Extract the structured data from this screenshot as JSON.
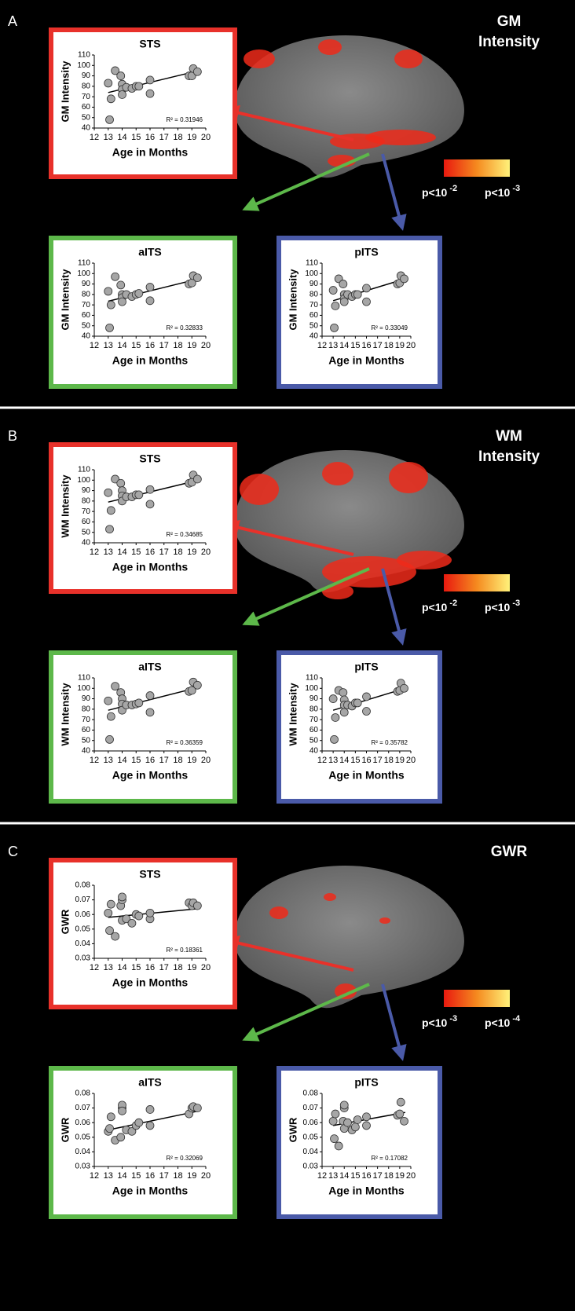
{
  "panels": [
    {
      "label": "A",
      "title": [
        "GM",
        "Intensity"
      ],
      "colorbar": [
        {
          "base": "p<10",
          "exp": "-2"
        },
        {
          "base": "p<10",
          "exp": "-3"
        }
      ]
    },
    {
      "label": "B",
      "title": [
        "WM",
        "Intensity"
      ],
      "colorbar": [
        {
          "base": "p<10",
          "exp": "-2"
        },
        {
          "base": "p<10",
          "exp": "-3"
        }
      ]
    },
    {
      "label": "C",
      "title": [
        "GWR"
      ],
      "colorbar": [
        {
          "base": "p<10",
          "exp": "-3"
        },
        {
          "base": "p<10",
          "exp": "-4"
        }
      ]
    }
  ],
  "chart_data": [
    {
      "type": "scatter",
      "title": "STS",
      "x_label": "Age in Months",
      "y_label": "GM Intensity",
      "annotation": "R² = 0.31946",
      "frame_color": "#e8312a",
      "color": "#a6a6a6",
      "xlim": [
        12,
        20
      ],
      "xticks": [
        12,
        13,
        14,
        15,
        16,
        17,
        18,
        19,
        20
      ],
      "ylim": [
        40,
        110
      ],
      "yticks": [
        40,
        50,
        60,
        70,
        80,
        90,
        100,
        110
      ],
      "x": [
        13,
        13.2,
        13.1,
        13.5,
        13.9,
        14,
        14,
        14,
        14.3,
        14.7,
        15,
        15.2,
        16,
        16,
        18.8,
        19,
        19.1,
        19.4
      ],
      "y": [
        83,
        68,
        48,
        95,
        90,
        82,
        77,
        72,
        79,
        78,
        80,
        80,
        73,
        86,
        90,
        90,
        97,
        94
      ],
      "fit": {
        "x": [
          13,
          19.5
        ],
        "y": [
          74,
          95
        ]
      }
    },
    {
      "type": "scatter",
      "title": "aITS",
      "x_label": "Age in Months",
      "y_label": "GM Intensity",
      "annotation": "R² = 0.32833",
      "frame_color": "#5db84a",
      "color": "#a6a6a6",
      "xlim": [
        12,
        20
      ],
      "xticks": [
        12,
        13,
        14,
        15,
        16,
        17,
        18,
        19,
        20
      ],
      "ylim": [
        40,
        110
      ],
      "yticks": [
        40,
        50,
        60,
        70,
        80,
        90,
        100,
        110
      ],
      "x": [
        13,
        13.2,
        13.1,
        13.5,
        13.9,
        14,
        14,
        14,
        14.3,
        14.7,
        15,
        15.2,
        16,
        16,
        18.8,
        19,
        19.1,
        19.4
      ],
      "y": [
        83,
        70,
        48,
        97,
        89,
        80,
        77,
        73,
        80,
        78,
        80,
        81,
        74,
        87,
        90,
        91,
        98,
        96
      ],
      "fit": {
        "x": [
          13,
          19.5
        ],
        "y": [
          73.5,
          95
        ]
      }
    },
    {
      "type": "scatter",
      "title": "pITS",
      "x_label": "Age in Months",
      "y_label": "GM Intensity",
      "annotation": "R² = 0.33049",
      "frame_color": "#4a5aa8",
      "color": "#a6a6a6",
      "xlim": [
        12,
        20
      ],
      "xticks": [
        12,
        13,
        14,
        15,
        16,
        17,
        18,
        19,
        20
      ],
      "ylim": [
        40,
        110
      ],
      "yticks": [
        40,
        50,
        60,
        70,
        80,
        90,
        100,
        110
      ],
      "x": [
        13,
        13.2,
        13.1,
        13.5,
        13.9,
        14,
        14,
        14,
        14.3,
        14.7,
        15,
        15.2,
        16,
        16,
        18.8,
        19,
        19.1,
        19.4
      ],
      "y": [
        84,
        69,
        48,
        95,
        90,
        80,
        76,
        73,
        80,
        78,
        80,
        80,
        73,
        86,
        90,
        91,
        98,
        95
      ],
      "fit": {
        "x": [
          13,
          19.5
        ],
        "y": [
          74,
          95
        ]
      }
    },
    {
      "type": "scatter",
      "title": "STS",
      "x_label": "Age in Months",
      "y_label": "WM Intensity",
      "annotation": "R² = 0.34685",
      "frame_color": "#e8312a",
      "color": "#a6a6a6",
      "xlim": [
        12,
        20
      ],
      "xticks": [
        12,
        13,
        14,
        15,
        16,
        17,
        18,
        19,
        20
      ],
      "ylim": [
        40,
        110
      ],
      "yticks": [
        40,
        50,
        60,
        70,
        80,
        90,
        100,
        110
      ],
      "x": [
        13,
        13.2,
        13.1,
        13.5,
        13.9,
        14,
        14,
        14,
        14.3,
        14.7,
        15,
        15.2,
        16,
        16,
        18.8,
        19,
        19.1,
        19.4
      ],
      "y": [
        88,
        71,
        53,
        101,
        97,
        90,
        85,
        80,
        84,
        84,
        86,
        86,
        77,
        91,
        97,
        98,
        105,
        101
      ],
      "fit": {
        "x": [
          13,
          19.5
        ],
        "y": [
          79,
          100
        ]
      }
    },
    {
      "type": "scatter",
      "title": "aITS",
      "x_label": "Age in Months",
      "y_label": "WM Intensity",
      "annotation": "R² = 0.36359",
      "frame_color": "#5db84a",
      "color": "#a6a6a6",
      "xlim": [
        12,
        20
      ],
      "xticks": [
        12,
        13,
        14,
        15,
        16,
        17,
        18,
        19,
        20
      ],
      "ylim": [
        40,
        110
      ],
      "yticks": [
        40,
        50,
        60,
        70,
        80,
        90,
        100,
        110
      ],
      "x": [
        13,
        13.2,
        13.1,
        13.5,
        13.9,
        14,
        14,
        14,
        14.3,
        14.7,
        15,
        15.2,
        16,
        16,
        18.8,
        19,
        19.1,
        19.4
      ],
      "y": [
        88,
        73,
        51,
        102,
        96,
        90,
        85,
        79,
        84,
        84,
        85,
        86,
        77,
        93,
        97,
        98,
        106,
        103
      ],
      "fit": {
        "x": [
          13,
          19.5
        ],
        "y": [
          79,
          101
        ]
      }
    },
    {
      "type": "scatter",
      "title": "pITS",
      "x_label": "Age in Months",
      "y_label": "WM Intensity",
      "annotation": "R² = 0.35782",
      "frame_color": "#4a5aa8",
      "color": "#a6a6a6",
      "xlim": [
        12,
        20
      ],
      "xticks": [
        12,
        13,
        14,
        15,
        16,
        17,
        18,
        19,
        20
      ],
      "ylim": [
        40,
        110
      ],
      "yticks": [
        40,
        50,
        60,
        70,
        80,
        90,
        100,
        110
      ],
      "x": [
        13,
        13.2,
        13.1,
        13.5,
        13.9,
        14,
        14,
        14,
        14.3,
        14.7,
        15,
        15.2,
        16,
        16,
        18.8,
        19,
        19.1,
        19.4
      ],
      "y": [
        90,
        72,
        51,
        98,
        96,
        89,
        84,
        77,
        84,
        83,
        86,
        86,
        78,
        92,
        97,
        98,
        105,
        100
      ],
      "fit": {
        "x": [
          13,
          19.5
        ],
        "y": [
          79,
          100
        ]
      }
    },
    {
      "type": "scatter",
      "title": "STS",
      "x_label": "Age in Months",
      "y_label": "GWR",
      "annotation": "R² = 0.18361",
      "frame_color": "#e8312a",
      "color": "#a6a6a6",
      "xlim": [
        12,
        20
      ],
      "xticks": [
        12,
        13,
        14,
        15,
        16,
        17,
        18,
        19,
        20
      ],
      "ylim": [
        0.03,
        0.08
      ],
      "yticks": [
        0.03,
        0.04,
        0.05,
        0.06,
        0.07,
        0.08
      ],
      "x": [
        13,
        13.2,
        13.1,
        13.5,
        13.9,
        14,
        14,
        14,
        14.3,
        14.7,
        15,
        15.2,
        16,
        16,
        18.8,
        19,
        19.1,
        19.4
      ],
      "y": [
        0.061,
        0.067,
        0.049,
        0.045,
        0.066,
        0.07,
        0.072,
        0.056,
        0.057,
        0.054,
        0.06,
        0.059,
        0.057,
        0.061,
        0.068,
        0.066,
        0.068,
        0.066
      ],
      "fit": {
        "x": [
          13,
          19.5
        ],
        "y": [
          0.058,
          0.064
        ]
      }
    },
    {
      "type": "scatter",
      "title": "aITS",
      "x_label": "Age in Months",
      "y_label": "GWR",
      "annotation": "R² = 0.32069",
      "frame_color": "#5db84a",
      "color": "#a6a6a6",
      "xlim": [
        12,
        20
      ],
      "xticks": [
        12,
        13,
        14,
        15,
        16,
        17,
        18,
        19,
        20
      ],
      "ylim": [
        0.03,
        0.08
      ],
      "yticks": [
        0.03,
        0.04,
        0.05,
        0.06,
        0.07,
        0.08
      ],
      "x": [
        13,
        13.2,
        13.1,
        13.5,
        13.9,
        14,
        14,
        14,
        14.3,
        14.7,
        15,
        15.2,
        16,
        16,
        18.8,
        19,
        19.1,
        19.4
      ],
      "y": [
        0.054,
        0.064,
        0.056,
        0.048,
        0.05,
        0.07,
        0.072,
        0.068,
        0.055,
        0.054,
        0.058,
        0.06,
        0.058,
        0.069,
        0.066,
        0.07,
        0.071,
        0.07
      ],
      "fit": {
        "x": [
          13,
          19.5
        ],
        "y": [
          0.055,
          0.068
        ]
      }
    },
    {
      "type": "scatter",
      "title": "pITS",
      "x_label": "Age in Months",
      "y_label": "GWR",
      "annotation": "R² = 0.17082",
      "frame_color": "#4a5aa8",
      "color": "#a6a6a6",
      "xlim": [
        12,
        20
      ],
      "xticks": [
        12,
        13,
        14,
        15,
        16,
        17,
        18,
        19,
        20
      ],
      "ylim": [
        0.03,
        0.08
      ],
      "yticks": [
        0.03,
        0.04,
        0.05,
        0.06,
        0.07,
        0.08
      ],
      "x": [
        13,
        13.2,
        13.1,
        13.5,
        13.9,
        14,
        14,
        14,
        14.3,
        14.7,
        15,
        15.2,
        16,
        16,
        18.8,
        19,
        19.1,
        19.4
      ],
      "y": [
        0.061,
        0.066,
        0.049,
        0.044,
        0.061,
        0.07,
        0.072,
        0.056,
        0.06,
        0.055,
        0.057,
        0.062,
        0.058,
        0.064,
        0.065,
        0.066,
        0.074,
        0.061
      ],
      "fit": {
        "x": [
          13,
          19.5
        ],
        "y": [
          0.058,
          0.067
        ]
      }
    }
  ]
}
